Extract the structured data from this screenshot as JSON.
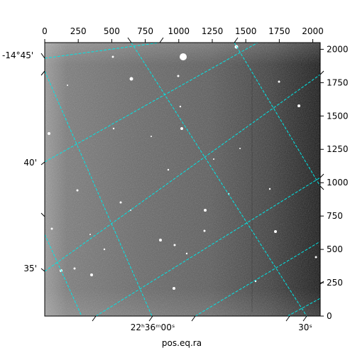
{
  "figure": {
    "x_axis_label": "pos.eq.ra",
    "top_ticks": [
      "0",
      "250",
      "500",
      "750",
      "1000",
      "1250",
      "1500",
      "1750",
      "2000"
    ],
    "right_ticks": [
      "0",
      "250",
      "500",
      "750",
      "1000",
      "1250",
      "1500",
      "1750",
      "2000"
    ],
    "ra_ticks": [
      "22ʰ36ᵐ00ˢ",
      "30ˢ"
    ],
    "dec_ticks": [
      "-14°45'",
      "40'",
      "35'"
    ]
  },
  "colors": {
    "grid": "#00e5e5",
    "frame": "#000000",
    "background": "#ffffff"
  }
}
